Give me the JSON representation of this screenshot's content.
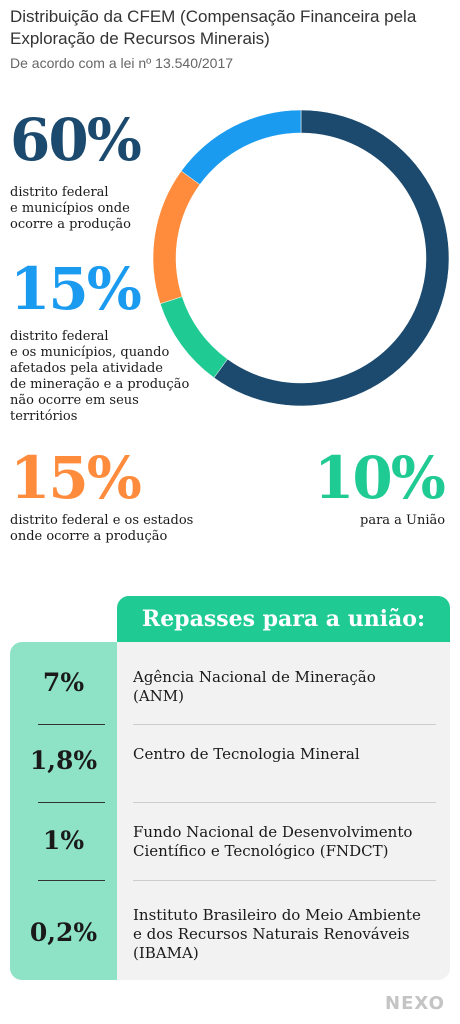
{
  "header": {
    "title": "Distribuição da CFEM (Compensação Financeira pela Exploração de Recursos Minerais)",
    "subtitle": "De acordo com a lei nº 13.540/2017"
  },
  "chart_data": {
    "type": "pie",
    "donut": true,
    "slices": [
      {
        "value": 60,
        "label": "60%",
        "description": [
          "distrito federal",
          "e municípios onde",
          "ocorre a produção"
        ],
        "color": "#1b4a6e"
      },
      {
        "value": 10,
        "label": "10%",
        "description": [
          "para a União"
        ],
        "color": "#1fca93"
      },
      {
        "value": 15,
        "label": "15%",
        "description": [
          "distrito federal e os estados",
          "onde ocorre a produção"
        ],
        "color": "#ff8c3c"
      },
      {
        "value": 15,
        "label": "15%",
        "description": [
          "distrito federal",
          "e os municípios, quando",
          "afetados pela atividade",
          "de mineração e a produção",
          "não ocorre em seus",
          "territórios"
        ],
        "color": "#1b9bf0"
      }
    ]
  },
  "table": {
    "header": "Repasses para a união:",
    "rows": [
      {
        "pct": "7%",
        "lines": [
          "Agência Nacional de Mineração",
          "(ANM)"
        ]
      },
      {
        "pct": "1,8%",
        "lines": [
          "Centro de Tecnologia Mineral"
        ]
      },
      {
        "pct": "1%",
        "lines": [
          "Fundo Nacional de Desenvolvimento",
          "Científico e Tecnológico (FNDCT)"
        ]
      },
      {
        "pct": "0,2%",
        "lines": [
          "Instituto Brasileiro do Meio Ambiente",
          "e dos Recursos Naturais Renováveis",
          "(IBAMA)"
        ]
      }
    ]
  },
  "logo": "NEXO"
}
